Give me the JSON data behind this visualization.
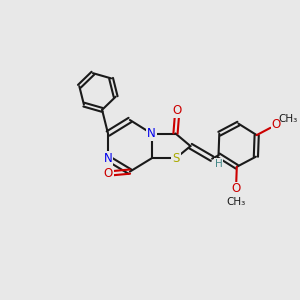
{
  "bg_color": "#e8e8e8",
  "bond_color": "#1a1a1a",
  "N_color": "#0000ee",
  "O_color": "#cc0000",
  "S_color": "#aaaa00",
  "H_color": "#448888",
  "lw": 1.5,
  "fs": 8.5,
  "fs_small": 7.5,
  "figsize": [
    3.0,
    3.0
  ],
  "dpi": 100,
  "xlim": [
    0,
    10
  ],
  "ylim": [
    0,
    10
  ]
}
